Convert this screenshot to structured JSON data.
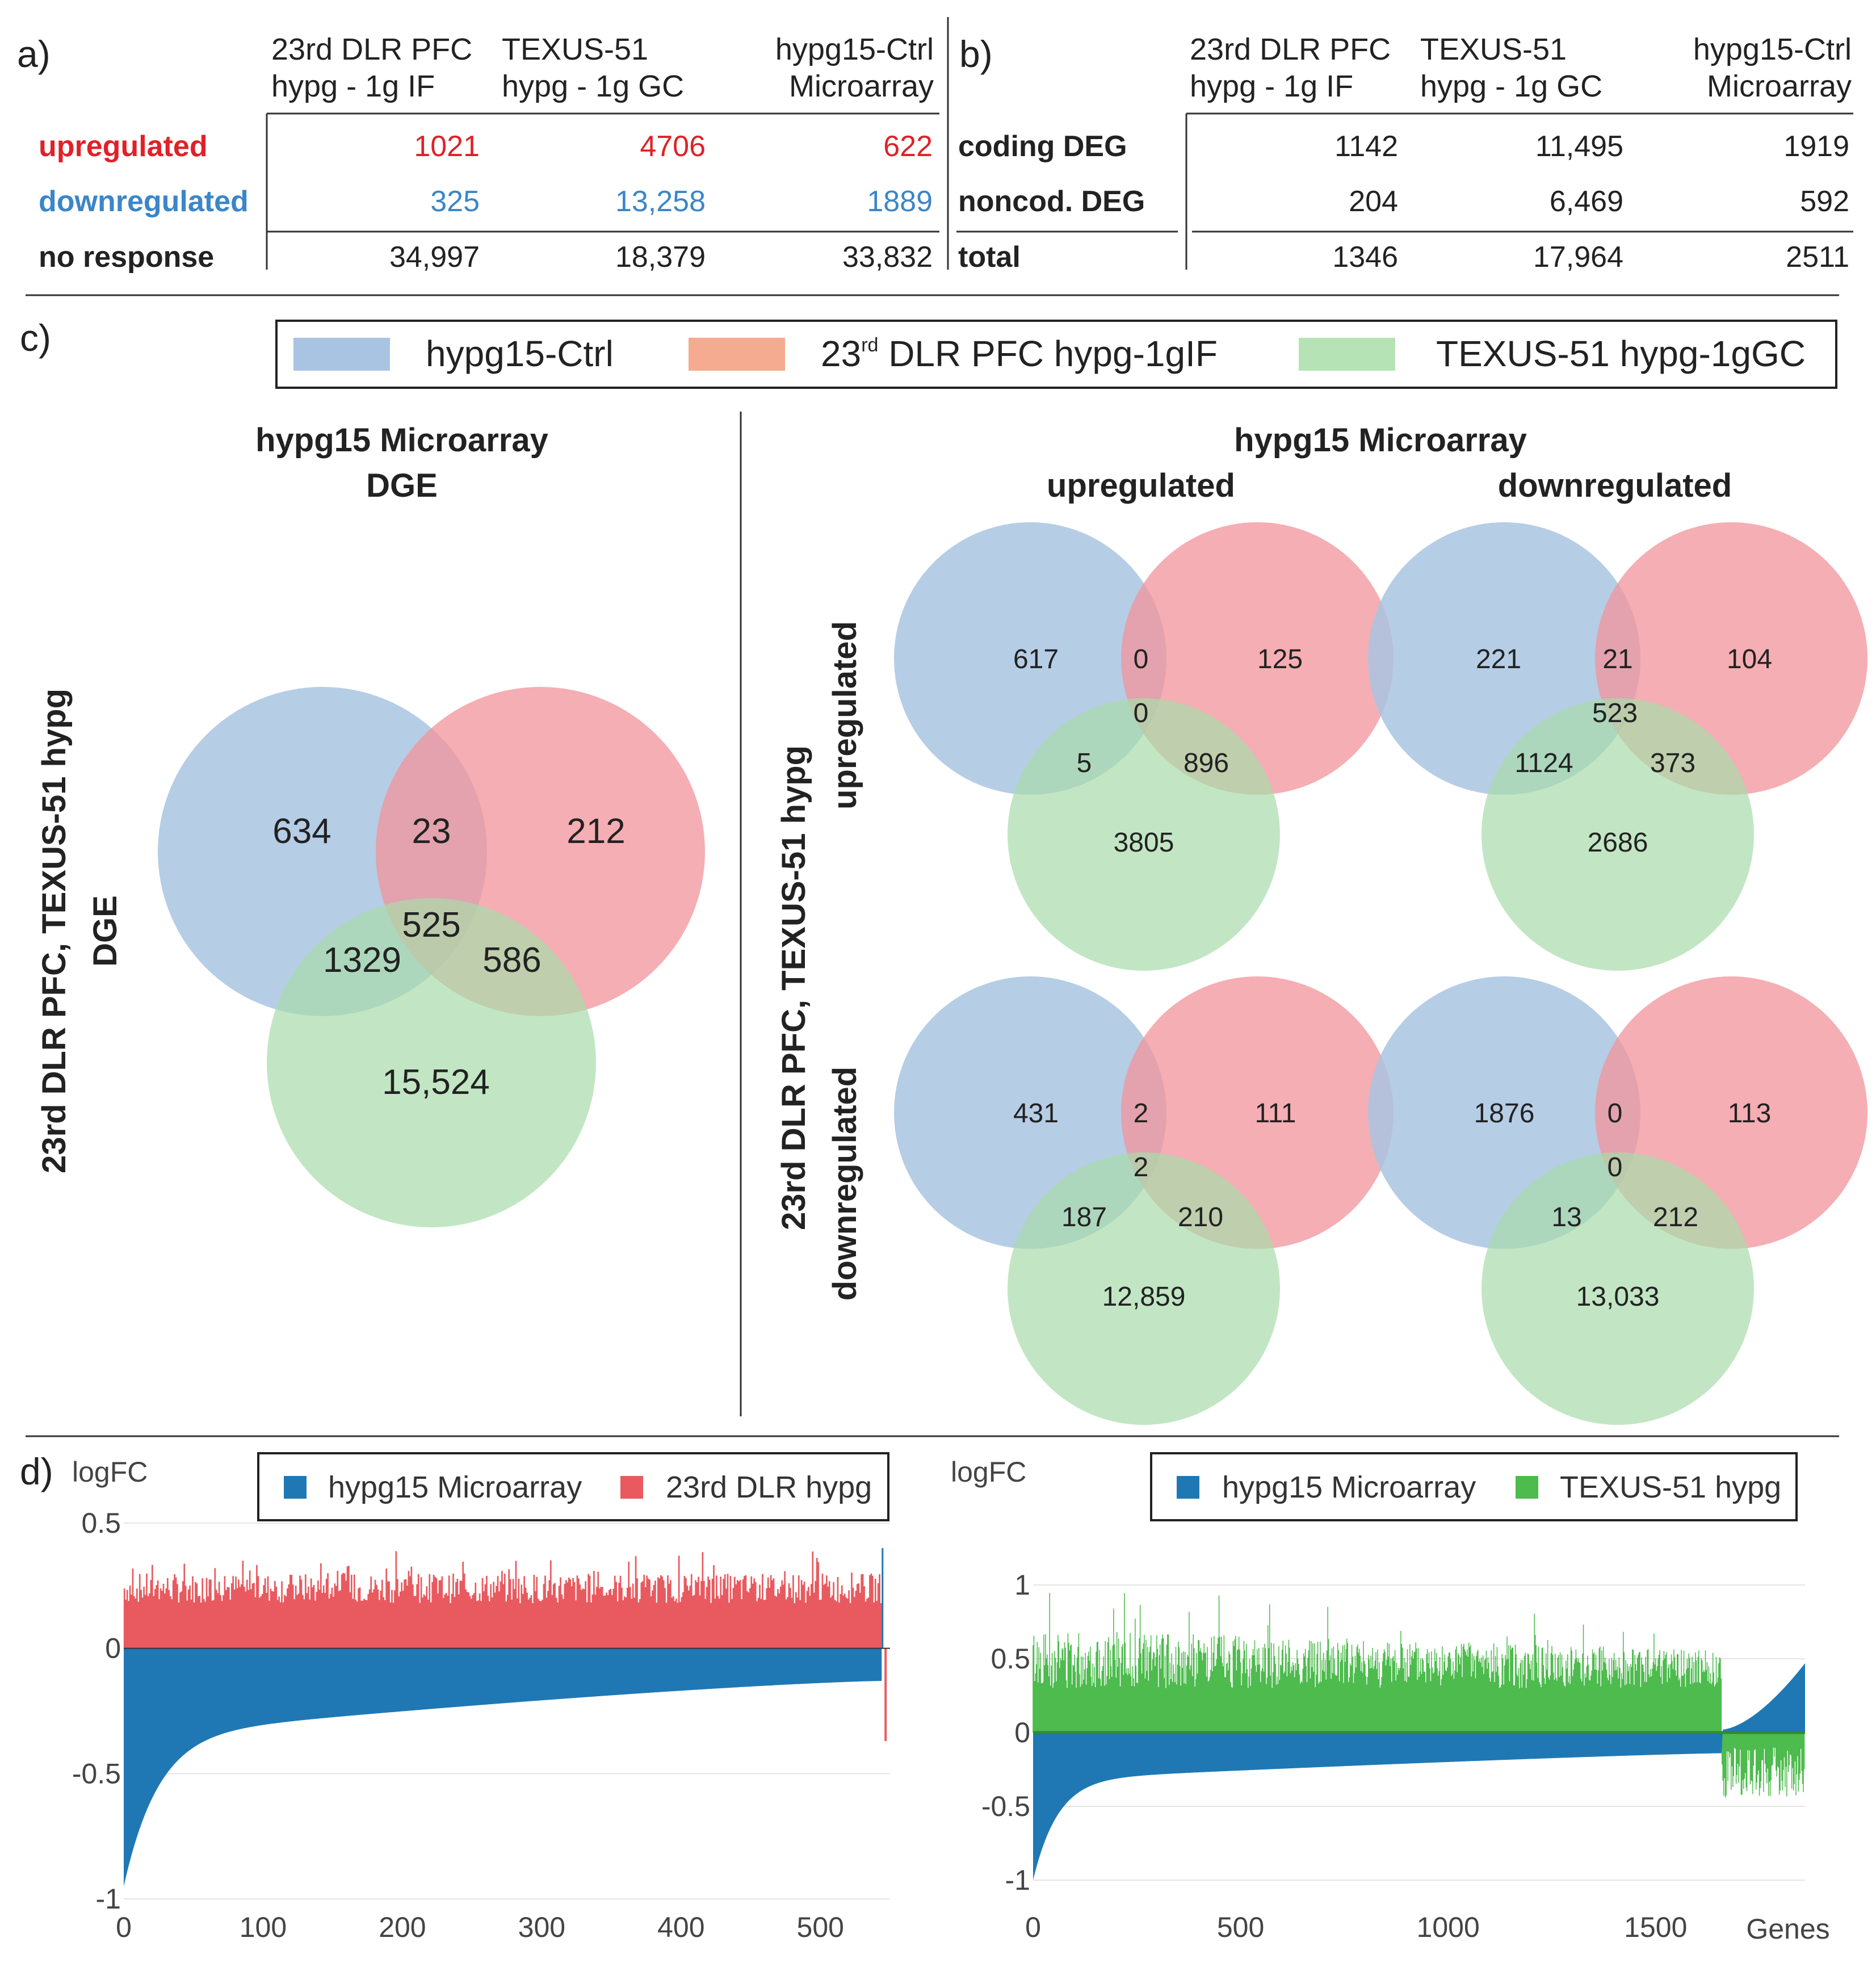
{
  "colors": {
    "blue": "#a9c4e2",
    "red": "#f2939a",
    "green": "#a8dcaa",
    "upregulated": "#e02128",
    "downregulated": "#3b86c8",
    "bar_blue": "#1f78b4",
    "bar_red": "#e85a5f",
    "bar_green": "#4dbb4d"
  },
  "panel_a": {
    "letter": "a)",
    "col_headers": [
      {
        "line1": "23rd DLR PFC",
        "line2": "hypg - 1g IF"
      },
      {
        "line1": "TEXUS-51",
        "line2": "hypg - 1g GC"
      },
      {
        "line1": "hypg15-Ctrl",
        "line2": "Microarray"
      }
    ],
    "rows": [
      {
        "label": "upregulated",
        "values": [
          "1021",
          "4706",
          "622"
        ]
      },
      {
        "label": "downregulated",
        "values": [
          "325",
          "13,258",
          "1889"
        ]
      },
      {
        "label": "no response",
        "values": [
          "34,997",
          "18,379",
          "33,832"
        ]
      }
    ]
  },
  "panel_b": {
    "letter": "b)",
    "col_headers": [
      {
        "line1": "23rd DLR PFC",
        "line2": "hypg - 1g IF"
      },
      {
        "line1": "TEXUS-51",
        "line2": "hypg - 1g GC"
      },
      {
        "line1": "hypg15-Ctrl",
        "line2": "Microarray"
      }
    ],
    "rows": [
      {
        "label": "coding DEG",
        "values": [
          "1142",
          "11,495",
          "1919"
        ]
      },
      {
        "label": "noncod. DEG",
        "values": [
          "204",
          "6,469",
          "592"
        ]
      },
      {
        "label": "total",
        "values": [
          "1346",
          "17,964",
          "2511"
        ]
      }
    ]
  },
  "panel_c": {
    "letter": "c)",
    "legend": {
      "blue": "hypg15-Ctrl",
      "red_prefix": "23",
      "red_sup": "rd",
      "red_rest": " DLR PFC hypg-1gIF",
      "green": "TEXUS-51 hypg-1gGC"
    },
    "left_title": {
      "line1": "hypg15 Microarray",
      "line2": "DGE"
    },
    "right_title": "hypg15 Microarray",
    "col_up": "upregulated",
    "col_down": "downregulated",
    "left_ylabel": {
      "line1": "23rd DLR PFC, TEXUS-51 hypg",
      "line2": "DGE"
    },
    "right_ylabel": "23rd DLR PFC, TEXUS-51 hypg",
    "row_up": "upregulated",
    "row_down": "downregulated",
    "venn_main": {
      "a": "634",
      "ab": "23",
      "b": "212",
      "abc": "525",
      "ac": "1329",
      "bc": "586",
      "c": "15,524"
    },
    "venn_up_up": {
      "a": "617",
      "ab": "0",
      "b": "125",
      "abc": "0",
      "ac": "5",
      "bc": "896",
      "c": "3805"
    },
    "venn_up_down": {
      "a": "221",
      "ab": "21",
      "b": "104",
      "abc": "523",
      "ac": "1124",
      "bc": "373",
      "c": "2686"
    },
    "venn_down_up": {
      "a": "431",
      "ab": "2",
      "b": "111",
      "abc": "2",
      "ac": "187",
      "bc": "210",
      "c": "12,859"
    },
    "venn_down_down": {
      "a": "1876",
      "ab": "0",
      "b": "113",
      "abc": "0",
      "ac": "13",
      "bc": "212",
      "c": "13,033"
    }
  },
  "panel_d": {
    "letter": "d)",
    "left_legend": {
      "a": "hypg15 Microarray",
      "b": "23rd DLR hypg"
    },
    "right_legend": {
      "a": "hypg15 Microarray",
      "b": "TEXUS-51 hypg"
    },
    "left_ylabel": "logFC",
    "right_ylabel": "logFC",
    "right_xlabel": "Genes",
    "chart_data": [
      {
        "type": "bar",
        "title": "",
        "xlabel": "",
        "ylabel": "logFC",
        "ylim": [
          -1,
          0.5
        ],
        "xlim": [
          0,
          550
        ],
        "xticks": [
          "0",
          "100",
          "200",
          "300",
          "400",
          "500"
        ],
        "yticks": [
          "0.5",
          "0",
          "-0.5",
          "-1"
        ],
        "series": [
          {
            "name": "hypg15 Microarray",
            "n": 550,
            "description_values": {
              "start": -0.95,
              "at_10": -0.65,
              "at_100": -0.45,
              "at_300": -0.32,
              "at_500": -0.22,
              "before_pos": -0.13,
              "pos_tail_max": 0.4
            }
          },
          {
            "name": "23rd DLR hypg",
            "n": 550,
            "approx_range": [
              0.2,
              0.45
            ],
            "tail_min": -0.37
          }
        ]
      },
      {
        "type": "bar",
        "title": "",
        "xlabel": "Genes",
        "ylabel": "logFC",
        "ylim": [
          -1.05,
          1.2
        ],
        "xlim": [
          0,
          1860
        ],
        "xticks": [
          "0",
          "500",
          "1000",
          "1500"
        ],
        "yticks": [
          "1",
          "0.5",
          "0",
          "-0.5",
          "-1"
        ],
        "series": [
          {
            "name": "hypg15 Microarray",
            "n": 1860,
            "description_values": {
              "start": -1.0,
              "at_100": -0.6,
              "at_1000": -0.3,
              "at_1650": -0.15,
              "end": 0.5
            }
          },
          {
            "name": "TEXUS-51 hypg",
            "n": 1860,
            "approx_range": [
              0.3,
              1.0
            ],
            "tail_range": [
              -0.5,
              -0.1
            ]
          }
        ]
      }
    ]
  }
}
